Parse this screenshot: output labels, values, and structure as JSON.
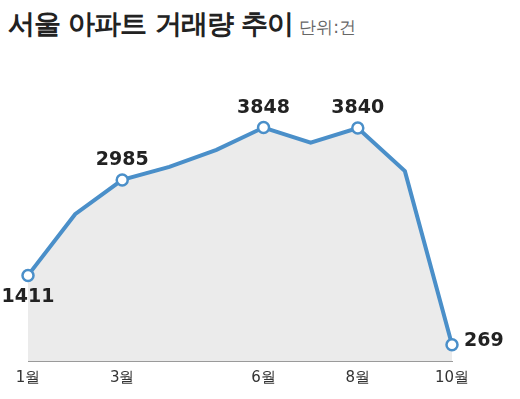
{
  "chart_data": {
    "type": "area",
    "title": "서울 아파트 거래량 추이",
    "subtitle": "단위:건",
    "categories": [
      "1월",
      null,
      "3월",
      null,
      null,
      "6월",
      null,
      "8월",
      null,
      "10월"
    ],
    "values": [
      1411,
      2420,
      2985,
      3200,
      3480,
      3848,
      3600,
      3840,
      3130,
      269
    ],
    "value_labels": [
      "1411",
      null,
      "2985",
      null,
      null,
      "3848",
      null,
      "3840",
      null,
      "269"
    ],
    "data_labels": true,
    "color": "#4a8fc9",
    "ylim": [
      0,
      4500
    ],
    "tick_labels": "x",
    "grid": false,
    "marker": "circle"
  }
}
